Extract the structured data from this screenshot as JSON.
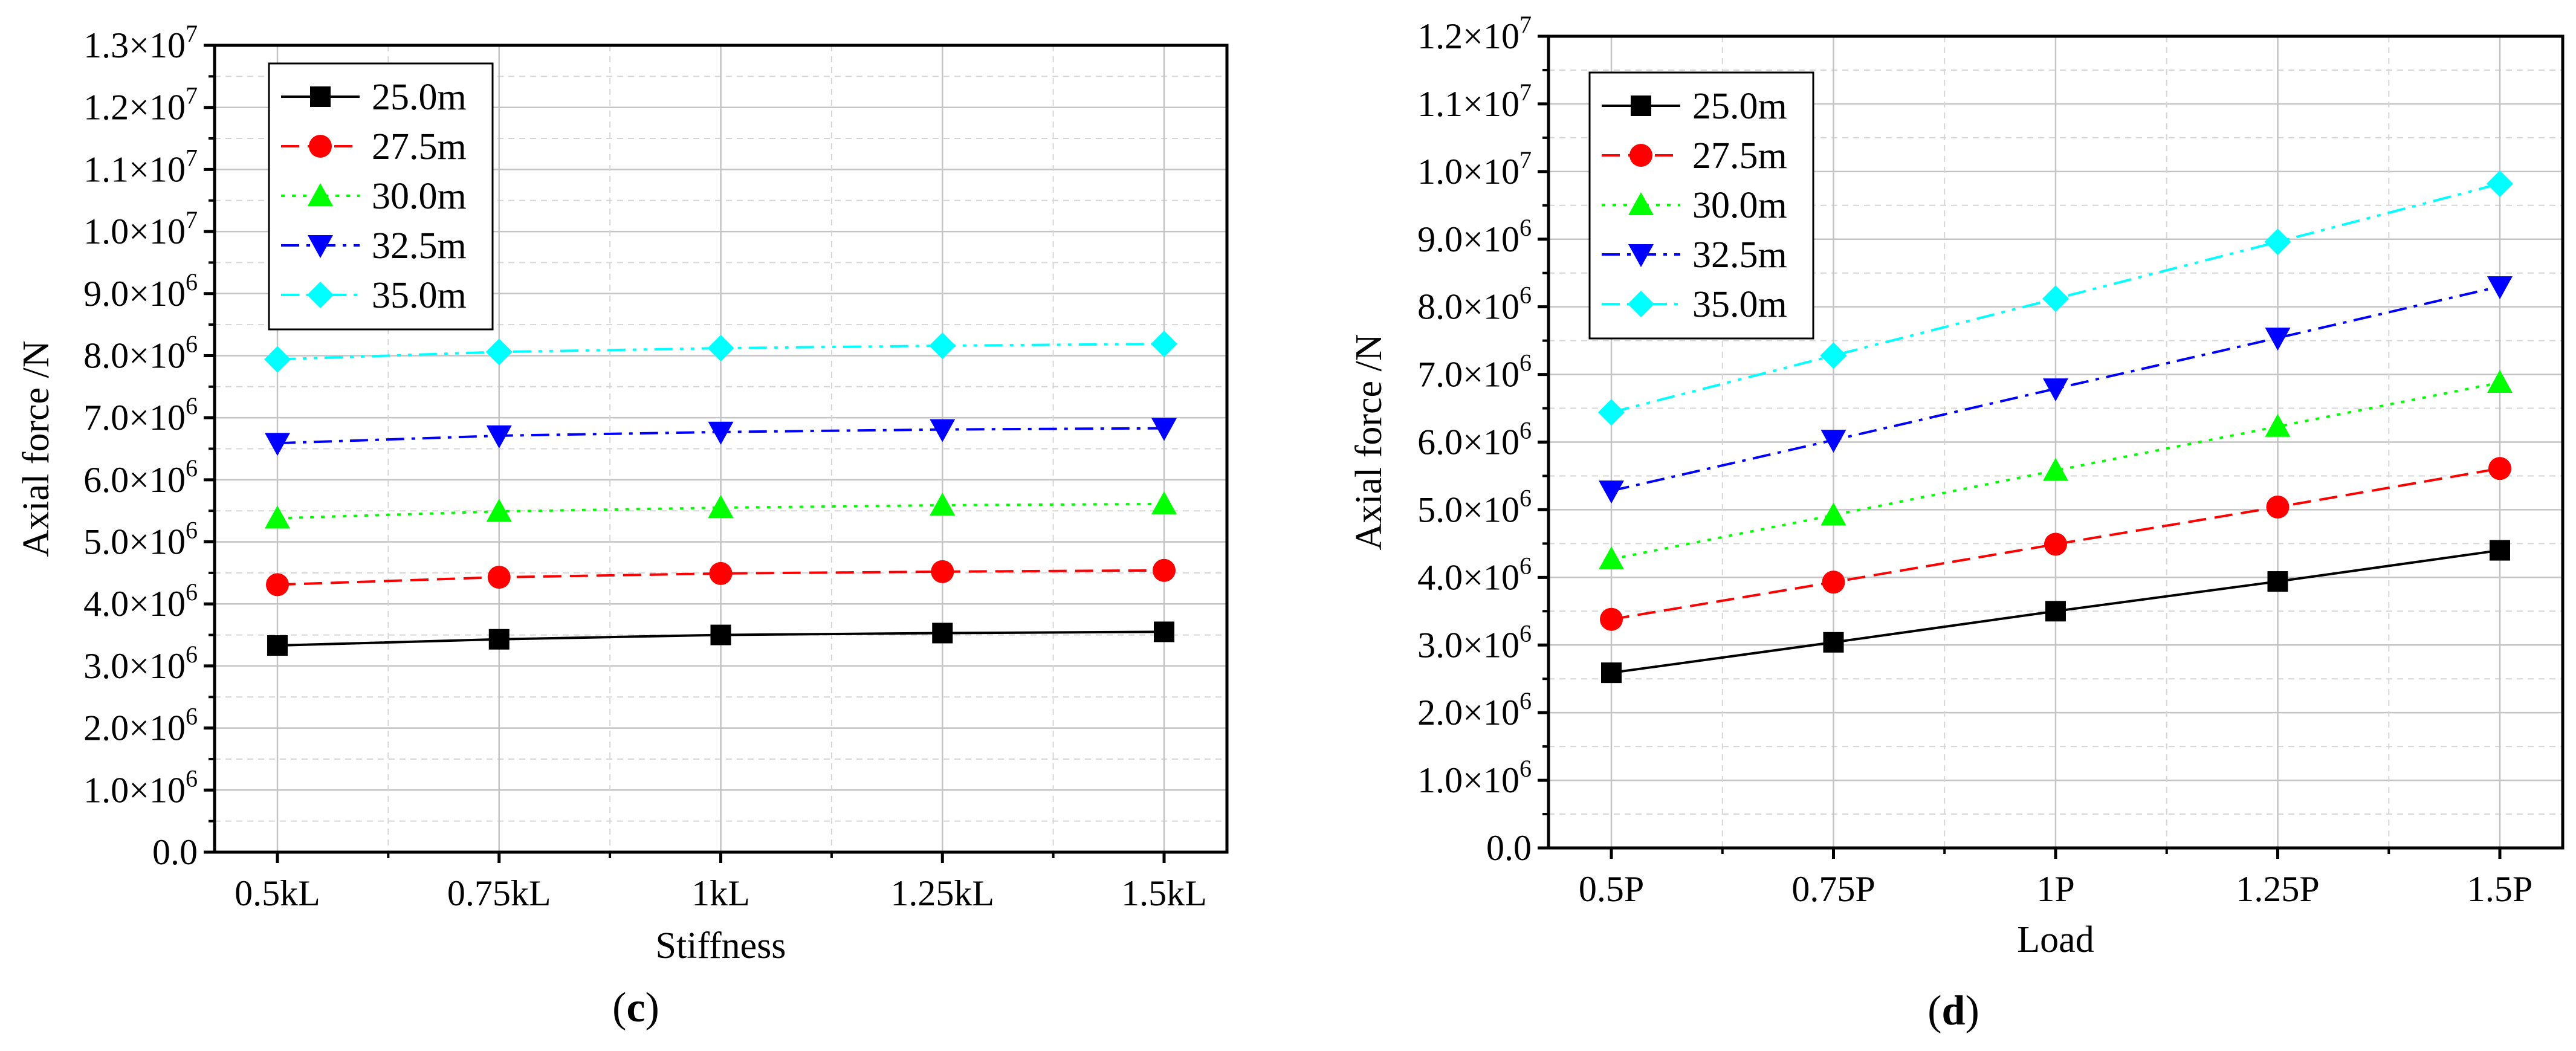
{
  "chart_data": [
    {
      "type": "line",
      "panel_label": {
        "open": "(",
        "letter": "c",
        "close": ")"
      },
      "xlabel": "Stiffness",
      "ylabel": "Axial force /N",
      "categories": [
        "0.5kL",
        "0.75kL",
        "1kL",
        "1.25kL",
        "1.5kL"
      ],
      "ylim": [
        0,
        13000000
      ],
      "yticks": [
        {
          "value": 0,
          "mantissa": "0.0",
          "exp": ""
        },
        {
          "value": 1000000,
          "mantissa": "1.0×10",
          "exp": "6"
        },
        {
          "value": 2000000,
          "mantissa": "2.0×10",
          "exp": "6"
        },
        {
          "value": 3000000,
          "mantissa": "3.0×10",
          "exp": "6"
        },
        {
          "value": 4000000,
          "mantissa": "4.0×10",
          "exp": "6"
        },
        {
          "value": 5000000,
          "mantissa": "5.0×10",
          "exp": "6"
        },
        {
          "value": 6000000,
          "mantissa": "6.0×10",
          "exp": "6"
        },
        {
          "value": 7000000,
          "mantissa": "7.0×10",
          "exp": "6"
        },
        {
          "value": 8000000,
          "mantissa": "8.0×10",
          "exp": "6"
        },
        {
          "value": 9000000,
          "mantissa": "9.0×10",
          "exp": "6"
        },
        {
          "value": 10000000,
          "mantissa": "1.0×10",
          "exp": "7"
        },
        {
          "value": 11000000,
          "mantissa": "1.1×10",
          "exp": "7"
        },
        {
          "value": 12000000,
          "mantissa": "1.2×10",
          "exp": "7"
        },
        {
          "value": 13000000,
          "mantissa": "1.3×10",
          "exp": "7"
        }
      ],
      "legend_position": "top-left",
      "grid": true,
      "series": [
        {
          "name": "25.0m",
          "color": "#000000",
          "marker": "square",
          "dash": "solid",
          "values": [
            3330000,
            3430000,
            3500000,
            3530000,
            3550000
          ]
        },
        {
          "name": "27.5m",
          "color": "#ff0000",
          "marker": "circle",
          "dash": "dash",
          "values": [
            4310000,
            4430000,
            4490000,
            4520000,
            4540000
          ]
        },
        {
          "name": "30.0m",
          "color": "#00ff00",
          "marker": "triangle-up",
          "dash": "dot",
          "values": [
            5380000,
            5490000,
            5550000,
            5590000,
            5610000
          ]
        },
        {
          "name": "32.5m",
          "color": "#0000ff",
          "marker": "triangle-down",
          "dash": "dashdot",
          "values": [
            6590000,
            6710000,
            6770000,
            6810000,
            6830000
          ]
        },
        {
          "name": "35.0m",
          "color": "#00ffff",
          "marker": "diamond",
          "dash": "dashdotdot",
          "values": [
            7940000,
            8060000,
            8120000,
            8160000,
            8190000
          ]
        }
      ]
    },
    {
      "type": "line",
      "panel_label": {
        "open": "(",
        "letter": "d",
        "close": ")"
      },
      "xlabel": "Load",
      "ylabel": "Axial force /N",
      "categories": [
        "0.5P",
        "0.75P",
        "1P",
        "1.25P",
        "1.5P"
      ],
      "ylim": [
        0,
        12000000
      ],
      "yticks": [
        {
          "value": 0,
          "mantissa": "0.0",
          "exp": ""
        },
        {
          "value": 1000000,
          "mantissa": "1.0×10",
          "exp": "6"
        },
        {
          "value": 2000000,
          "mantissa": "2.0×10",
          "exp": "6"
        },
        {
          "value": 3000000,
          "mantissa": "3.0×10",
          "exp": "6"
        },
        {
          "value": 4000000,
          "mantissa": "4.0×10",
          "exp": "6"
        },
        {
          "value": 5000000,
          "mantissa": "5.0×10",
          "exp": "6"
        },
        {
          "value": 6000000,
          "mantissa": "6.0×10",
          "exp": "6"
        },
        {
          "value": 7000000,
          "mantissa": "7.0×10",
          "exp": "6"
        },
        {
          "value": 8000000,
          "mantissa": "8.0×10",
          "exp": "6"
        },
        {
          "value": 9000000,
          "mantissa": "9.0×10",
          "exp": "6"
        },
        {
          "value": 10000000,
          "mantissa": "1.0×10",
          "exp": "7"
        },
        {
          "value": 11000000,
          "mantissa": "1.1×10",
          "exp": "7"
        },
        {
          "value": 12000000,
          "mantissa": "1.2×10",
          "exp": "7"
        }
      ],
      "legend_position": "top-left",
      "grid": true,
      "series": [
        {
          "name": "25.0m",
          "color": "#000000",
          "marker": "square",
          "dash": "solid",
          "values": [
            2590000,
            3040000,
            3500000,
            3940000,
            4400000
          ]
        },
        {
          "name": "27.5m",
          "color": "#ff0000",
          "marker": "circle",
          "dash": "dash",
          "values": [
            3380000,
            3930000,
            4490000,
            5040000,
            5610000
          ]
        },
        {
          "name": "30.0m",
          "color": "#00ff00",
          "marker": "triangle-up",
          "dash": "dot",
          "values": [
            4270000,
            4920000,
            5580000,
            6230000,
            6880000
          ]
        },
        {
          "name": "32.5m",
          "color": "#0000ff",
          "marker": "triangle-down",
          "dash": "dashdot",
          "values": [
            5280000,
            6030000,
            6790000,
            7540000,
            8300000
          ]
        },
        {
          "name": "35.0m",
          "color": "#00ffff",
          "marker": "diamond",
          "dash": "dashdotdot",
          "values": [
            6440000,
            7280000,
            8120000,
            8960000,
            9820000
          ]
        }
      ]
    }
  ]
}
